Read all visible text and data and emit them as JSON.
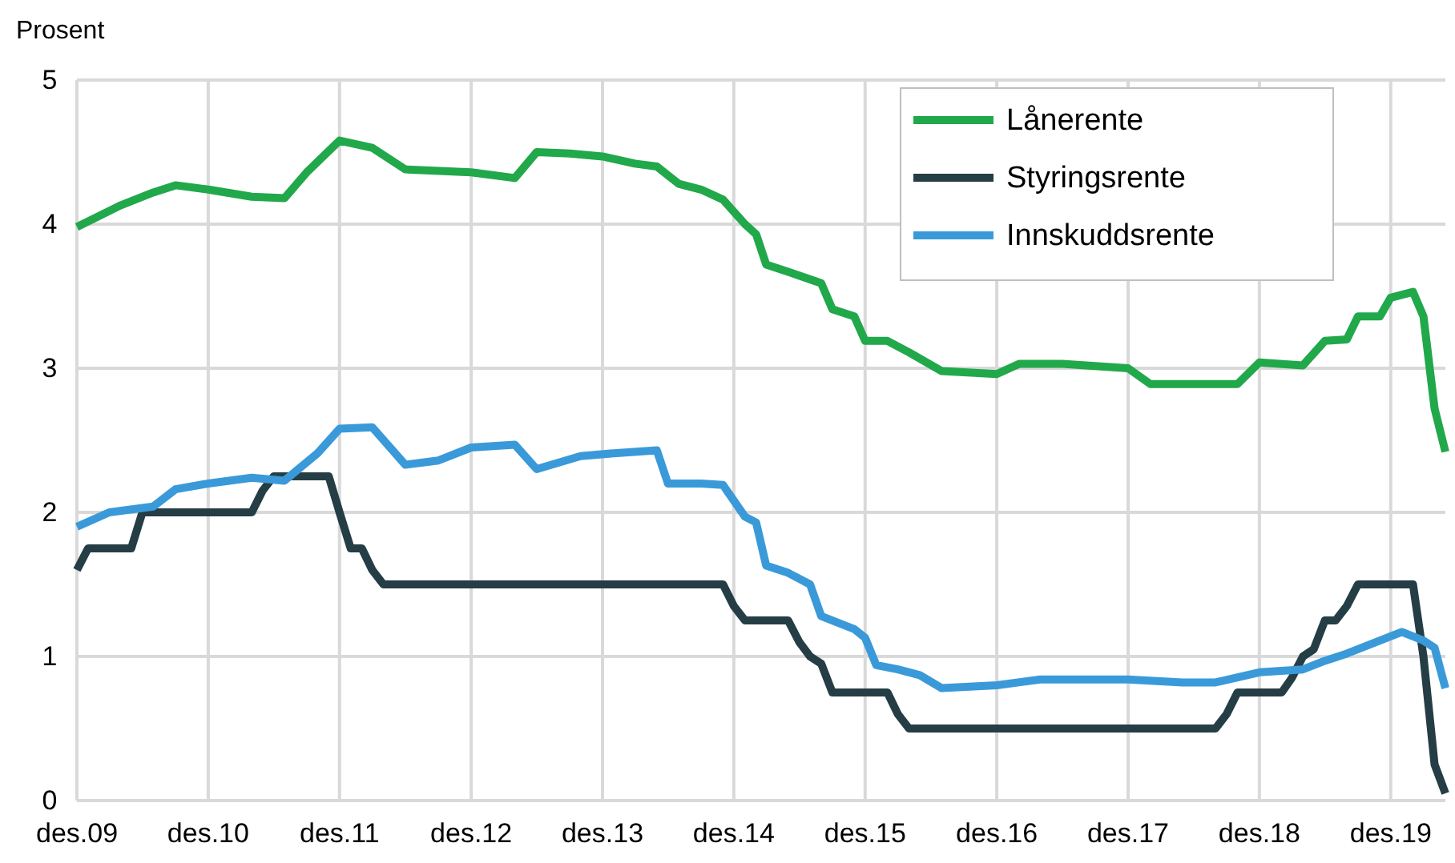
{
  "chart_data": {
    "type": "line",
    "ylabel": "Prosent",
    "xlim": [
      "2009-12",
      "2020-05"
    ],
    "ylim": [
      0,
      5
    ],
    "yticks": [
      0,
      1,
      2,
      3,
      4,
      5
    ],
    "xticks": [
      {
        "value": "2009-12",
        "label": "des.09"
      },
      {
        "value": "2010-12",
        "label": "des.10"
      },
      {
        "value": "2011-12",
        "label": "des.11"
      },
      {
        "value": "2012-12",
        "label": "des.12"
      },
      {
        "value": "2013-12",
        "label": "des.13"
      },
      {
        "value": "2014-12",
        "label": "des.14"
      },
      {
        "value": "2015-12",
        "label": "des.15"
      },
      {
        "value": "2016-12",
        "label": "des.16"
      },
      {
        "value": "2017-12",
        "label": "des.17"
      },
      {
        "value": "2018-12",
        "label": "des.18"
      },
      {
        "value": "2019-12",
        "label": "des.19"
      }
    ],
    "grid": true,
    "legend": "top right",
    "marker": "none",
    "line_style": "solid",
    "series": [
      {
        "name": "Lånerente",
        "color": "#21a84a",
        "x": [
          "2009-12",
          "2010-04",
          "2010-07",
          "2010-09",
          "2010-12",
          "2011-04",
          "2011-07",
          "2011-09",
          "2011-12",
          "2012-03",
          "2012-06",
          "2012-12",
          "2013-04",
          "2013-06",
          "2013-09",
          "2013-12",
          "2014-03",
          "2014-05",
          "2014-07",
          "2014-09",
          "2014-11",
          "2015-01",
          "2015-02",
          "2015-03",
          "2015-05",
          "2015-08",
          "2015-09",
          "2015-11",
          "2015-12",
          "2016-02",
          "2016-04",
          "2016-07",
          "2016-12",
          "2017-02",
          "2017-06",
          "2017-12",
          "2018-02",
          "2018-05",
          "2018-08",
          "2018-10",
          "2018-12",
          "2019-04",
          "2019-06",
          "2019-08",
          "2019-09",
          "2019-11",
          "2019-12",
          "2020-02",
          "2020-03",
          "2020-04",
          "2020-05"
        ],
        "values": [
          3.98,
          4.13,
          4.22,
          4.27,
          4.24,
          4.19,
          4.18,
          4.36,
          4.58,
          4.53,
          4.38,
          4.36,
          4.32,
          4.5,
          4.49,
          4.47,
          4.42,
          4.4,
          4.28,
          4.24,
          4.17,
          4.0,
          3.93,
          3.72,
          3.67,
          3.59,
          3.41,
          3.36,
          3.19,
          3.19,
          3.11,
          2.98,
          2.96,
          3.03,
          3.03,
          3.0,
          2.89,
          2.89,
          2.89,
          2.89,
          3.04,
          3.02,
          3.19,
          3.2,
          3.36,
          3.36,
          3.49,
          3.53,
          3.36,
          2.72,
          2.42
        ]
      },
      {
        "name": "Styringsrente",
        "color": "#253d45",
        "x": [
          "2009-12",
          "2010-01",
          "2010-05",
          "2010-06",
          "2011-04",
          "2011-05",
          "2011-06",
          "2011-11",
          "2011-12",
          "2012-01",
          "2012-02",
          "2012-03",
          "2012-04",
          "2014-11",
          "2014-12",
          "2015-01",
          "2015-05",
          "2015-06",
          "2015-07",
          "2015-08",
          "2015-09",
          "2016-02",
          "2016-03",
          "2016-04",
          "2018-08",
          "2018-09",
          "2018-10",
          "2019-02",
          "2019-03",
          "2019-04",
          "2019-05",
          "2019-06",
          "2019-07",
          "2019-08",
          "2019-09",
          "2020-02",
          "2020-03",
          "2020-04",
          "2020-05"
        ],
        "values": [
          1.6,
          1.75,
          1.75,
          2.0,
          2.0,
          2.15,
          2.25,
          2.25,
          2.0,
          1.75,
          1.75,
          1.6,
          1.5,
          1.5,
          1.35,
          1.25,
          1.25,
          1.1,
          1.0,
          0.95,
          0.75,
          0.75,
          0.6,
          0.5,
          0.5,
          0.6,
          0.75,
          0.75,
          0.85,
          1.0,
          1.05,
          1.25,
          1.25,
          1.35,
          1.5,
          1.5,
          1.0,
          0.25,
          0.05
        ]
      },
      {
        "name": "Innskuddsrente",
        "color": "#3a9ad9",
        "x": [
          "2009-12",
          "2010-03",
          "2010-07",
          "2010-09",
          "2010-12",
          "2011-04",
          "2011-07",
          "2011-10",
          "2011-12",
          "2012-03",
          "2012-06",
          "2012-09",
          "2012-12",
          "2013-04",
          "2013-06",
          "2013-10",
          "2014-01",
          "2014-05",
          "2014-06",
          "2014-09",
          "2014-11",
          "2015-01",
          "2015-02",
          "2015-03",
          "2015-05",
          "2015-07",
          "2015-08",
          "2015-11",
          "2015-12",
          "2016-01",
          "2016-03",
          "2016-05",
          "2016-07",
          "2016-12",
          "2017-04",
          "2017-12",
          "2018-05",
          "2018-08",
          "2018-12",
          "2019-04",
          "2019-06",
          "2019-08",
          "2019-11",
          "2020-01",
          "2020-03",
          "2020-04",
          "2020-05"
        ],
        "values": [
          1.9,
          2.0,
          2.04,
          2.16,
          2.2,
          2.24,
          2.22,
          2.41,
          2.58,
          2.59,
          2.33,
          2.36,
          2.45,
          2.47,
          2.3,
          2.39,
          2.41,
          2.43,
          2.2,
          2.2,
          2.19,
          1.97,
          1.93,
          1.63,
          1.58,
          1.5,
          1.28,
          1.19,
          1.13,
          0.94,
          0.91,
          0.87,
          0.78,
          0.8,
          0.84,
          0.84,
          0.82,
          0.82,
          0.89,
          0.91,
          0.97,
          1.02,
          1.11,
          1.17,
          1.11,
          1.06,
          0.78
        ]
      }
    ]
  }
}
